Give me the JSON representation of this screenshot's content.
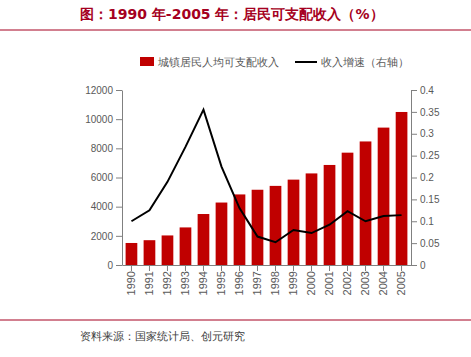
{
  "chart_data": {
    "type": "bar",
    "title": "图：1990 年-2005 年：居民可支配收入（%）",
    "source": "资料来源：国家统计局、创元研究",
    "categories": [
      "1990",
      "1991",
      "1992",
      "1993",
      "1994",
      "1995",
      "1996",
      "1997",
      "1998",
      "1999",
      "2000",
      "2001",
      "2002",
      "2003",
      "2004",
      "2005"
    ],
    "series": [
      {
        "name": "城镇居民人均可支配收入",
        "type": "bar",
        "color": "#c00000",
        "values": [
          1510,
          1701,
          2027,
          2577,
          3496,
          4283,
          4839,
          5160,
          5425,
          5854,
          6280,
          6860,
          7703,
          8472,
          9422,
          10493
        ]
      },
      {
        "name": "收入增速（右轴）",
        "type": "line",
        "color": "#000000",
        "axis": "y2",
        "values": [
          0.1,
          0.125,
          0.19,
          0.27,
          0.355,
          0.225,
          0.13,
          0.065,
          0.052,
          0.08,
          0.073,
          0.092,
          0.123,
          0.1,
          0.112,
          0.114
        ]
      }
    ],
    "ylim": [
      0,
      12000
    ],
    "yticks": [
      0,
      2000,
      4000,
      6000,
      8000,
      10000,
      12000
    ],
    "y2lim": [
      0,
      0.4
    ],
    "y2ticks": [
      0,
      0.05,
      0.1,
      0.15,
      0.2,
      0.25,
      0.3,
      0.35,
      0.4
    ],
    "legend": "top",
    "grid": false
  }
}
